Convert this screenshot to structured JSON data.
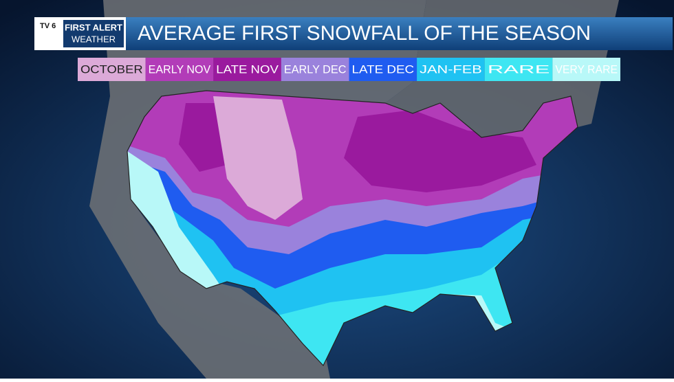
{
  "logo": {
    "station": "TV 6",
    "line1": "FIRST ALERT",
    "line2": "WEATHER"
  },
  "title": "AVERAGE FIRST SNOWFALL OF THE SEASON",
  "legend": [
    {
      "label": "OCTOBER",
      "color": "#dcaad8"
    },
    {
      "label": "EARLY NOV",
      "color": "#b23cb8"
    },
    {
      "label": "LATE NOV",
      "color": "#9a1a9e"
    },
    {
      "label": "EARLY DEC",
      "color": "#9a82dc"
    },
    {
      "label": "LATE DEC",
      "color": "#1f5cf0"
    },
    {
      "label": "JAN-FEB",
      "color": "#1fc2f2"
    },
    {
      "label": "RARE",
      "color": "#3ee6f2"
    },
    {
      "label": "VERY RARE",
      "color": "#b8f8f8"
    }
  ]
}
